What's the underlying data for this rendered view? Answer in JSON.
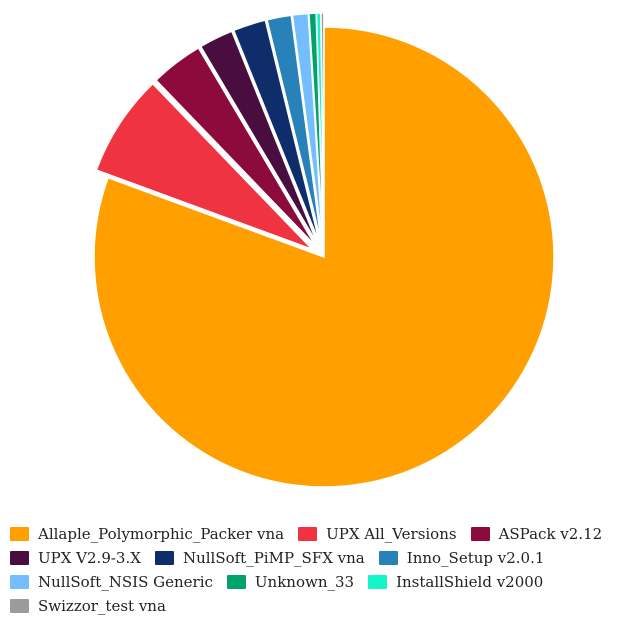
{
  "chart_data": {
    "type": "pie",
    "title": "",
    "start_angle_deg": 0,
    "direction": "clockwise",
    "series": [
      {
        "name": "Allaple_Polymorphic_Packer vna",
        "value": 80.6,
        "color": "#ff9f00",
        "exploded": false
      },
      {
        "name": "UPX All_Versions",
        "value": 7.2,
        "color": "#ef3340",
        "exploded": true
      },
      {
        "name": "ASPack v2.12",
        "value": 3.7,
        "color": "#8c0a3c",
        "exploded": true
      },
      {
        "name": "UPX V2.9-3.X",
        "value": 2.4,
        "color": "#4a0d3f",
        "exploded": true
      },
      {
        "name": "NullSoft_PiMP_SFX vna",
        "value": 2.3,
        "color": "#0f2d6a",
        "exploded": true
      },
      {
        "name": "Inno_Setup v2.0.1",
        "value": 1.7,
        "color": "#2882b9",
        "exploded": true
      },
      {
        "name": "NullSoft_NSIS Generic",
        "value": 1.1,
        "color": "#74beff",
        "exploded": true
      },
      {
        "name": "Unknown_33",
        "value": 0.5,
        "color": "#00a36c",
        "exploded": true
      },
      {
        "name": "InstallShield v2000",
        "value": 0.3,
        "color": "#14f5c8",
        "exploded": true
      },
      {
        "name": "Swizzor_test vna",
        "value": 0.2,
        "color": "#9b9b9b",
        "exploded": true
      }
    ],
    "legend": {
      "placement": "bottom",
      "columns": 3
    }
  }
}
